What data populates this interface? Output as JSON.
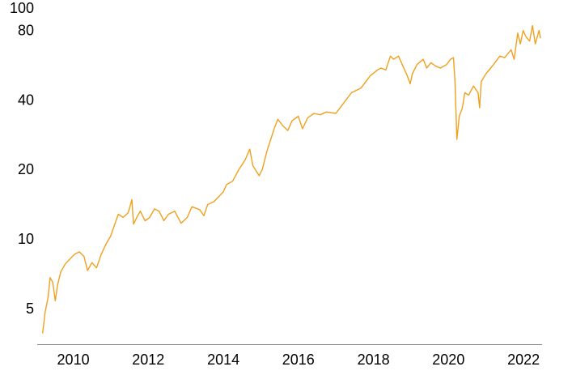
{
  "chart_data": {
    "type": "line",
    "title": "",
    "xlabel": "",
    "ylabel": "",
    "yscale": "log",
    "grid": false,
    "legend": "none",
    "xlim": [
      "2009-01-15",
      "2022-06-30"
    ],
    "ylim": [
      3.5,
      100
    ],
    "x_ticks": [
      "2010",
      "2012",
      "2014",
      "2016",
      "2018",
      "2020",
      "2022"
    ],
    "y_ticks": [
      "5",
      "10",
      "20",
      "40",
      "80",
      "100"
    ],
    "series": [
      {
        "color": "#F0A01E",
        "points": [
          [
            "2009-03-09",
            3.9
          ],
          [
            "2009-04-01",
            4.8
          ],
          [
            "2009-05-01",
            5.6
          ],
          [
            "2009-05-20",
            6.8
          ],
          [
            "2009-06-15",
            6.5
          ],
          [
            "2009-07-10",
            5.4
          ],
          [
            "2009-08-01",
            6.3
          ],
          [
            "2009-09-01",
            7.2
          ],
          [
            "2009-10-15",
            7.8
          ],
          [
            "2009-12-01",
            8.2
          ],
          [
            "2010-01-15",
            8.6
          ],
          [
            "2010-03-01",
            8.8
          ],
          [
            "2010-04-15",
            8.4
          ],
          [
            "2010-05-20",
            7.3
          ],
          [
            "2010-07-01",
            7.9
          ],
          [
            "2010-08-15",
            7.5
          ],
          [
            "2010-10-01",
            8.6
          ],
          [
            "2010-11-15",
            9.5
          ],
          [
            "2010-12-31",
            10.3
          ],
          [
            "2011-02-15",
            11.8
          ],
          [
            "2011-03-15",
            12.8
          ],
          [
            "2011-05-01",
            12.4
          ],
          [
            "2011-06-20",
            13.0
          ],
          [
            "2011-07-25",
            14.8
          ],
          [
            "2011-08-10",
            11.6
          ],
          [
            "2011-09-15",
            12.5
          ],
          [
            "2011-10-15",
            13.2
          ],
          [
            "2011-12-01",
            12.0
          ],
          [
            "2012-01-15",
            12.4
          ],
          [
            "2012-03-01",
            13.5
          ],
          [
            "2012-04-15",
            13.2
          ],
          [
            "2012-06-01",
            12.0
          ],
          [
            "2012-07-15",
            12.8
          ],
          [
            "2012-09-15",
            13.2
          ],
          [
            "2012-11-15",
            11.7
          ],
          [
            "2013-01-15",
            12.4
          ],
          [
            "2013-03-01",
            13.8
          ],
          [
            "2013-05-15",
            13.4
          ],
          [
            "2013-06-25",
            12.6
          ],
          [
            "2013-08-01",
            14.1
          ],
          [
            "2013-10-01",
            14.5
          ],
          [
            "2013-12-31",
            16.0
          ],
          [
            "2014-02-01",
            17.2
          ],
          [
            "2014-04-01",
            17.8
          ],
          [
            "2014-06-01",
            20.0
          ],
          [
            "2014-08-01",
            22.0
          ],
          [
            "2014-09-15",
            24.5
          ],
          [
            "2014-10-15",
            20.8
          ],
          [
            "2014-12-15",
            18.8
          ],
          [
            "2015-01-15",
            20.0
          ],
          [
            "2015-03-01",
            24.0
          ],
          [
            "2015-04-01",
            26.5
          ],
          [
            "2015-05-15",
            30.5
          ],
          [
            "2015-06-15",
            33.0
          ],
          [
            "2015-08-01",
            31.0
          ],
          [
            "2015-09-20",
            29.5
          ],
          [
            "2015-11-01",
            32.5
          ],
          [
            "2015-12-31",
            34.0
          ],
          [
            "2016-02-10",
            30.0
          ],
          [
            "2016-04-01",
            33.5
          ],
          [
            "2016-06-01",
            35.0
          ],
          [
            "2016-08-01",
            34.5
          ],
          [
            "2016-10-01",
            35.5
          ],
          [
            "2016-12-31",
            35.0
          ],
          [
            "2017-03-01",
            38.0
          ],
          [
            "2017-06-01",
            43.0
          ],
          [
            "2017-09-01",
            45.0
          ],
          [
            "2017-12-01",
            51.0
          ],
          [
            "2018-02-10",
            54.0
          ],
          [
            "2018-03-15",
            55.0
          ],
          [
            "2018-05-01",
            54.0
          ],
          [
            "2018-06-15",
            62.0
          ],
          [
            "2018-07-15",
            60.0
          ],
          [
            "2018-09-01",
            62.0
          ],
          [
            "2018-10-15",
            56.0
          ],
          [
            "2018-11-25",
            51.0
          ],
          [
            "2018-12-24",
            47.0
          ],
          [
            "2019-01-15",
            52.0
          ],
          [
            "2019-03-01",
            57.0
          ],
          [
            "2019-05-01",
            60.0
          ],
          [
            "2019-06-03",
            55.0
          ],
          [
            "2019-07-15",
            58.0
          ],
          [
            "2019-09-01",
            56.0
          ],
          [
            "2019-10-15",
            55.0
          ],
          [
            "2019-12-15",
            57.0
          ],
          [
            "2020-01-20",
            60.0
          ],
          [
            "2020-02-19",
            61.0
          ],
          [
            "2020-03-05",
            48.0
          ],
          [
            "2020-03-23",
            27.0
          ],
          [
            "2020-04-15",
            34.0
          ],
          [
            "2020-05-15",
            37.0
          ],
          [
            "2020-06-08",
            43.0
          ],
          [
            "2020-07-15",
            42.0
          ],
          [
            "2020-09-01",
            46.0
          ],
          [
            "2020-10-15",
            43.0
          ],
          [
            "2020-10-30",
            37.0
          ],
          [
            "2020-11-15",
            48.0
          ],
          [
            "2020-12-31",
            52.0
          ],
          [
            "2021-02-15",
            55.0
          ],
          [
            "2021-03-15",
            57.0
          ],
          [
            "2021-05-15",
            62.0
          ],
          [
            "2021-07-01",
            61.0
          ],
          [
            "2021-09-01",
            66.0
          ],
          [
            "2021-10-01",
            60.0
          ],
          [
            "2021-11-05",
            78.0
          ],
          [
            "2021-12-01",
            70.0
          ],
          [
            "2021-12-28",
            80.0
          ],
          [
            "2022-01-25",
            75.0
          ],
          [
            "2022-03-01",
            72.0
          ],
          [
            "2022-03-29",
            84.0
          ],
          [
            "2022-04-25",
            70.0
          ],
          [
            "2022-06-01",
            80.0
          ],
          [
            "2022-06-15",
            74.0
          ]
        ]
      }
    ]
  }
}
